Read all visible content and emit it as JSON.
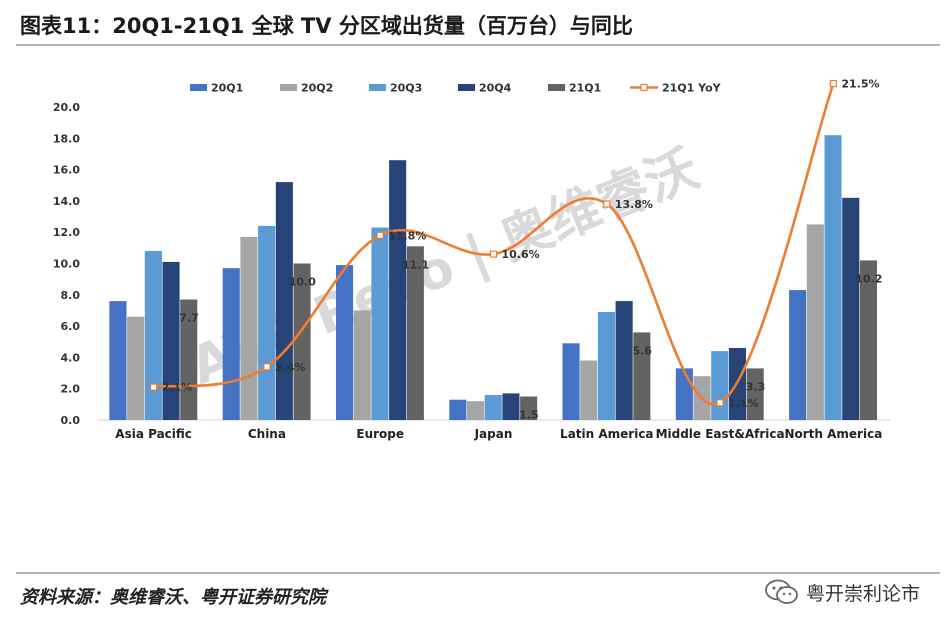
{
  "header": {
    "title": "图表11：20Q1-21Q1 全球 TV 分区域出货量（百万台）与同比"
  },
  "footer": {
    "source": "资料来源：奥维睿沃、粤开证券研究院",
    "account_name": "粤开崇利论市",
    "account_icon": "wechat-icon"
  },
  "watermark": "AVC Revo | 奥维睿沃",
  "colors": {
    "20Q1": "#4472c4",
    "20Q2": "#a5a5a5",
    "20Q3": "#5b9bd5",
    "20Q4": "#264478",
    "21Q1": "#636363",
    "yoy": "#ed7d31"
  },
  "chart_data": {
    "type": "bar",
    "categories": [
      "Asia Pacific",
      "China",
      "Europe",
      "Japan",
      "Latin America",
      "Middle East&Africa",
      "North America"
    ],
    "series": [
      {
        "name": "20Q1",
        "values": [
          7.6,
          9.7,
          9.9,
          1.3,
          4.9,
          3.3,
          8.3
        ]
      },
      {
        "name": "20Q2",
        "values": [
          6.6,
          11.7,
          7.0,
          1.2,
          3.8,
          2.8,
          12.5
        ]
      },
      {
        "name": "20Q3",
        "values": [
          10.8,
          12.4,
          12.3,
          1.6,
          6.9,
          4.4,
          18.2
        ]
      },
      {
        "name": "20Q4",
        "values": [
          10.1,
          15.2,
          16.6,
          1.7,
          7.6,
          4.6,
          14.2
        ]
      },
      {
        "name": "21Q1",
        "values": [
          7.7,
          10.0,
          11.1,
          1.5,
          5.6,
          3.3,
          10.2
        ]
      }
    ],
    "bar_labels": [
      "7.7",
      "10.0",
      "11.1",
      "1.5",
      "5.6",
      "3.3",
      "10.2"
    ],
    "line": {
      "name": "21Q1 YoY",
      "type": "line",
      "smooth": true,
      "values": [
        2.1,
        3.4,
        11.8,
        10.6,
        13.8,
        1.1,
        21.5
      ],
      "labels": [
        "2.1%",
        "3.4%",
        "11.8%",
        "10.6%",
        "13.8%",
        "1.1%",
        "21.5%"
      ]
    },
    "y_ticks": [
      "0.0",
      "2.0",
      "4.0",
      "6.0",
      "8.0",
      "10.0",
      "12.0",
      "14.0",
      "16.0",
      "18.0",
      "20.0"
    ],
    "ylim": [
      0,
      20
    ],
    "legend": [
      "20Q1",
      "20Q2",
      "20Q3",
      "20Q4",
      "21Q1",
      "21Q1 YoY"
    ],
    "legend_position": "top",
    "grid": false
  }
}
